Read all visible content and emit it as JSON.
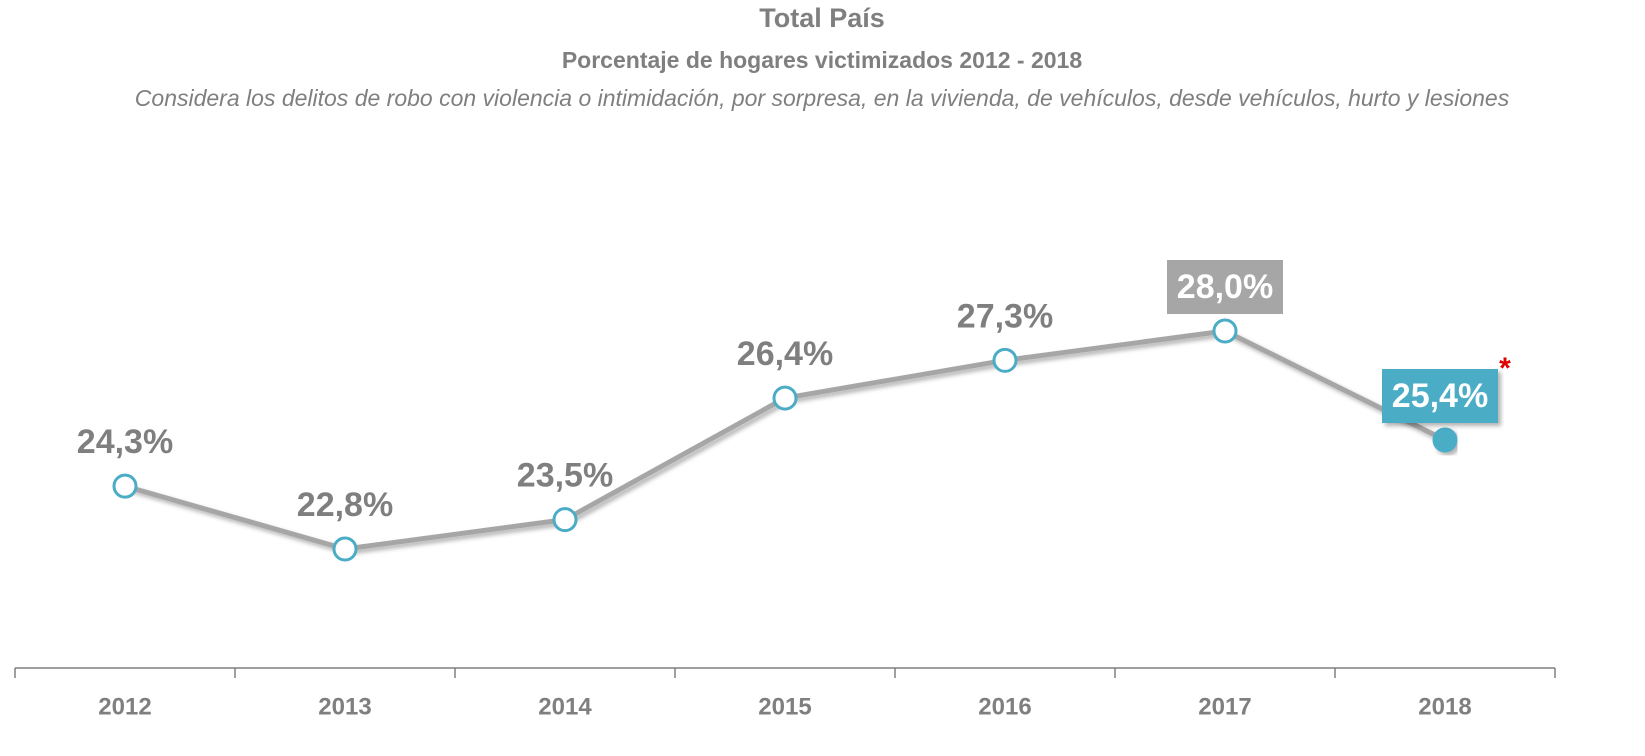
{
  "chart_data": {
    "type": "line",
    "title": "Total País",
    "subtitle": "Porcentaje de hogares victimizados 2012 - 2018",
    "note": "Considera los delitos de robo con violencia o intimidación, por sorpresa, en la vivienda, de vehículos, desde vehículos, hurto y lesiones",
    "categories": [
      "2012",
      "2013",
      "2014",
      "2015",
      "2016",
      "2017",
      "2018"
    ],
    "series": [
      {
        "color": "#a6a6a6",
        "marker_color": "#4bacc6",
        "values": [
          24.3,
          22.8,
          23.5,
          26.4,
          27.3,
          28.0,
          25.4
        ],
        "value_labels": [
          "24,3%",
          "22,8%",
          "23,5%",
          "26,4%",
          "27,3%",
          "28,0%",
          "25,4%"
        ],
        "label_box_colors": [
          null,
          null,
          null,
          null,
          null,
          "#a6a6a6",
          "#4bacc6"
        ]
      }
    ],
    "annotation": "*"
  }
}
